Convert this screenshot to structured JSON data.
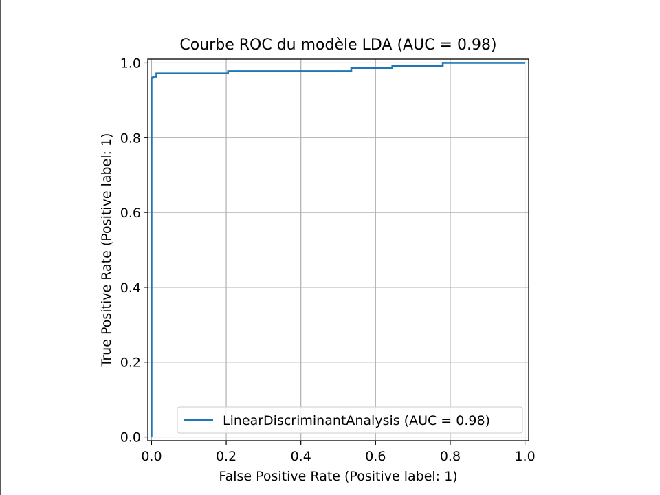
{
  "chart_data": {
    "type": "line",
    "title": "Courbe ROC du modèle LDA (AUC = 0.98)",
    "xlabel": "False Positive Rate (Positive label: 1)",
    "ylabel": "True Positive Rate (Positive label: 1)",
    "xlim": [
      -0.01,
      1.01
    ],
    "ylim": [
      -0.01,
      1.01
    ],
    "xticks": [
      0.0,
      0.2,
      0.4,
      0.6,
      0.8,
      1.0
    ],
    "yticks": [
      0.0,
      0.2,
      0.4,
      0.6,
      0.8,
      1.0
    ],
    "xtick_labels": [
      "0.0",
      "0.2",
      "0.4",
      "0.6",
      "0.8",
      "1.0"
    ],
    "ytick_labels": [
      "0.0",
      "0.2",
      "0.4",
      "0.6",
      "0.8",
      "1.0"
    ],
    "grid": true,
    "legend_position": "lower-right",
    "series": [
      {
        "name": "LinearDiscriminantAnalysis (AUC = 0.98)",
        "color": "#1f77b4",
        "x": [
          0.0,
          0.0,
          0.004,
          0.004,
          0.013,
          0.013,
          0.205,
          0.205,
          0.535,
          0.535,
          0.645,
          0.645,
          0.78,
          0.78,
          1.0
        ],
        "y": [
          0.0,
          0.96,
          0.96,
          0.963,
          0.963,
          0.972,
          0.972,
          0.978,
          0.978,
          0.986,
          0.986,
          0.991,
          0.991,
          1.0,
          1.0
        ]
      }
    ]
  }
}
